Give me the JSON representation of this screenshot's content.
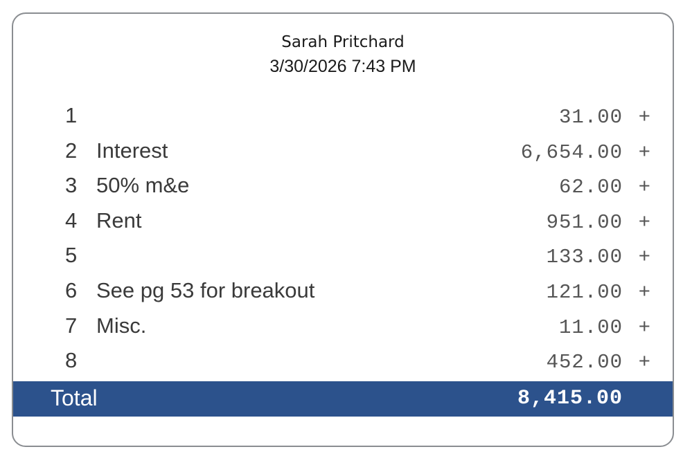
{
  "header": {
    "name": "Sarah Pritchard",
    "datetime": "3/30/2026 7:43 PM"
  },
  "lines": [
    {
      "num": "1",
      "desc": "",
      "amount": "31.00",
      "op": "+"
    },
    {
      "num": "2",
      "desc": "Interest",
      "amount": "6,654.00",
      "op": "+"
    },
    {
      "num": "3",
      "desc": "50% m&e",
      "amount": "62.00",
      "op": "+"
    },
    {
      "num": "4",
      "desc": "Rent",
      "amount": "951.00",
      "op": "+"
    },
    {
      "num": "5",
      "desc": "",
      "amount": "133.00",
      "op": "+"
    },
    {
      "num": "6",
      "desc": "See pg 53 for breakout",
      "amount": "121.00",
      "op": "+"
    },
    {
      "num": "7",
      "desc": "Misc.",
      "amount": "11.00",
      "op": "+"
    },
    {
      "num": "8",
      "desc": "",
      "amount": "452.00",
      "op": "+"
    }
  ],
  "total": {
    "label": "Total",
    "amount": "8,415.00"
  },
  "colors": {
    "total_bar": "#2c528c",
    "border": "#8a8d91"
  }
}
